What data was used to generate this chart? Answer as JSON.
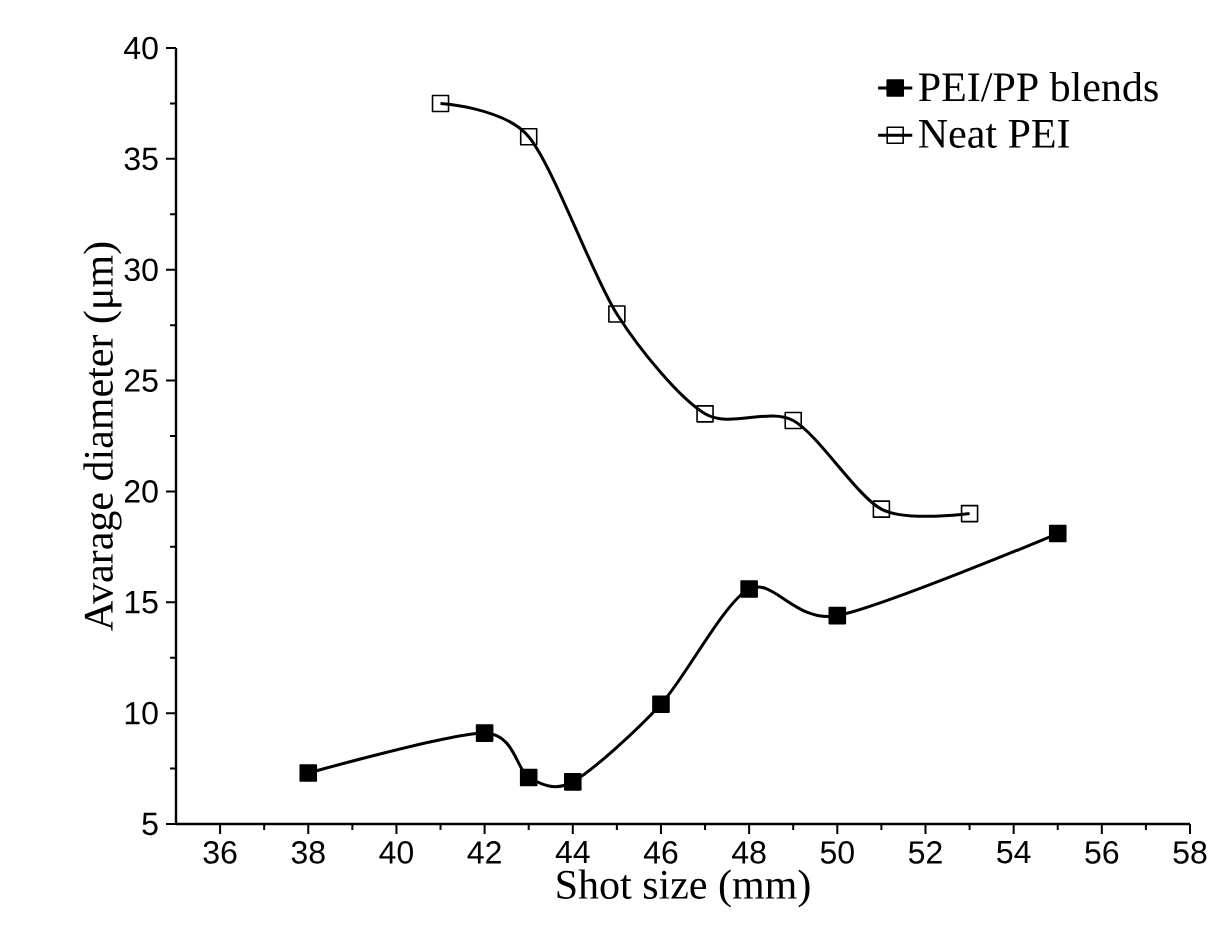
{
  "chart_data": {
    "type": "line",
    "xlabel": "Shot size (mm)",
    "ylabel": "Avarage diameter  (μm)",
    "xlim": [
      35,
      58
    ],
    "xticks": [
      36,
      38,
      40,
      42,
      44,
      46,
      48,
      50,
      52,
      54,
      56,
      58
    ],
    "ylim": [
      5,
      40
    ],
    "yticks": [
      5,
      10,
      15,
      20,
      25,
      30,
      35,
      40
    ],
    "grid": false,
    "legend": "top right",
    "marker": "square",
    "line_style": "solid",
    "series": [
      {
        "name": "PEI/PP blends",
        "color": "#000000",
        "x": [
          38,
          42,
          43,
          44,
          46,
          48,
          50,
          55
        ],
        "values": [
          7.3,
          9.1,
          7.1,
          6.9,
          10.4,
          15.6,
          14.4,
          18.1
        ]
      },
      {
        "name": "Neat PEI",
        "color": "#000000",
        "x": [
          41,
          43,
          45,
          47,
          49,
          51,
          53
        ],
        "values": [
          37.5,
          36.0,
          28.0,
          23.5,
          23.2,
          19.2,
          19.0
        ]
      }
    ]
  }
}
